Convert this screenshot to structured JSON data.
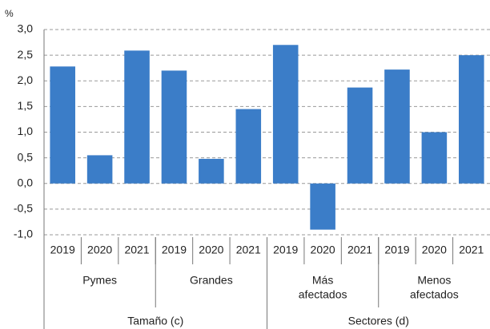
{
  "chart_data": {
    "type": "bar",
    "unit": "%",
    "categories": [
      "2019",
      "2020",
      "2021",
      "2019",
      "2020",
      "2021",
      "2019",
      "2020",
      "2021",
      "2019",
      "2020",
      "2021"
    ],
    "groups": [
      [
        "Pymes"
      ],
      [
        "Grandes"
      ],
      [
        "Más",
        "afectados"
      ],
      [
        "Menos",
        "afectados"
      ]
    ],
    "supergroups": [
      "Tamaño (c)",
      "Sectores (d)"
    ],
    "values": [
      2.28,
      0.55,
      2.59,
      2.2,
      0.48,
      1.45,
      2.7,
      -0.9,
      1.87,
      2.22,
      1.0,
      2.5
    ],
    "color": "#3b7dc8",
    "ylim": [
      -1,
      3
    ],
    "yticks": [
      {
        "value": -1,
        "label": "-1,0"
      },
      {
        "value": -0.5,
        "label": "-0,5"
      },
      {
        "value": 0,
        "label": "0,0"
      },
      {
        "value": 0.5,
        "label": "0,5"
      },
      {
        "value": 1,
        "label": "1,0"
      },
      {
        "value": 1.5,
        "label": "1,5"
      },
      {
        "value": 2,
        "label": "2,0"
      },
      {
        "value": 2.5,
        "label": "2,5"
      },
      {
        "value": 3,
        "label": "3,0"
      }
    ],
    "grid": true
  }
}
